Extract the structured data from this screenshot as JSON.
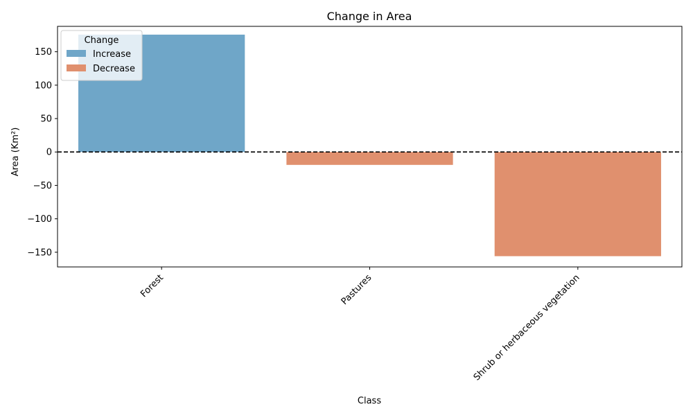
{
  "chart_data": {
    "type": "bar",
    "title": "Change in Area",
    "xlabel": "Class",
    "ylabel": "Area (Km²)",
    "categories": [
      "Forest",
      "Pastures",
      "Shrub or herbaceous vegetation"
    ],
    "values": [
      175.6,
      -19.3,
      -155.9
    ],
    "change": [
      "Increase",
      "Decrease",
      "Decrease"
    ],
    "ylim": [
      -172,
      188
    ],
    "yticks": [
      -150,
      -100,
      -50,
      0,
      50,
      100,
      150
    ],
    "ytick_labels": [
      "−150",
      "−100",
      "−50",
      "0",
      "50",
      "100",
      "150"
    ],
    "reference_line": {
      "y": 0,
      "style": "dashed",
      "color": "#000000"
    },
    "grid": false,
    "legend": {
      "title": "Change",
      "placement": "top-left",
      "entries": [
        {
          "label": "Increase",
          "color": "#6fa6c8"
        },
        {
          "label": "Decrease",
          "color": "#e0906e"
        }
      ]
    },
    "colors": {
      "Increase": "#6fa6c8",
      "Decrease": "#e0906e"
    }
  }
}
